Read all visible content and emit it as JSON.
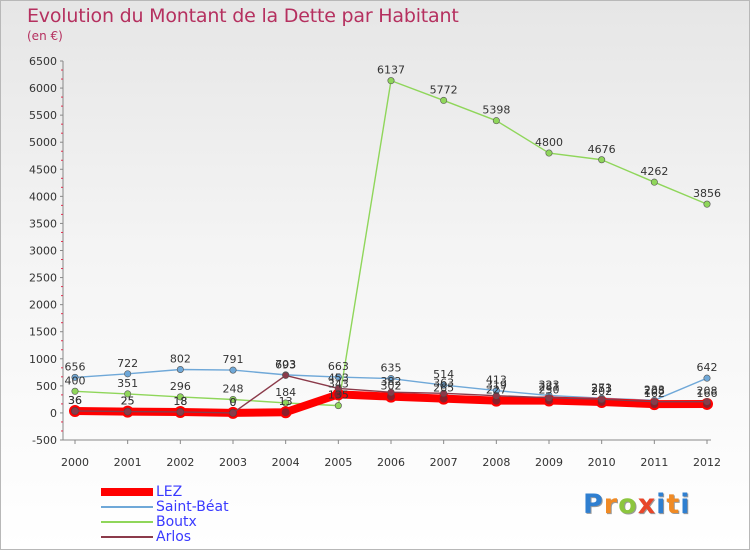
{
  "title": "Evolution du Montant de la Dette par Habitant",
  "unit": "(en €)",
  "logo": {
    "letters": [
      "P",
      "r",
      "o",
      "x",
      "i",
      "t",
      "i"
    ],
    "colors": [
      "#2f7fd0",
      "#f08a24",
      "#8cc63f",
      "#e8462a",
      "#2f7fd0",
      "#f08a24",
      "#2f7fd0"
    ]
  },
  "chart_data": {
    "type": "line",
    "x": [
      "2000",
      "2001",
      "2002",
      "2003",
      "2004",
      "2005",
      "2006",
      "2007",
      "2008",
      "2009",
      "2010",
      "2011",
      "2012"
    ],
    "ylim": [
      -500,
      6500
    ],
    "yticks": [
      -500,
      0,
      500,
      1000,
      1500,
      2000,
      2500,
      3000,
      3500,
      4000,
      4500,
      5000,
      5500,
      6000,
      6500
    ],
    "grid": false,
    "legend_position": "bottom-left",
    "series": [
      {
        "name": "LEZ",
        "color": "#ff0000",
        "values": [
          36,
          25,
          18,
          0,
          13,
          343,
          302,
          265,
          227,
          230,
          202,
          162,
          166
        ],
        "labels": [
          "36",
          "25",
          "18",
          "0",
          "13",
          "343",
          "302",
          "265",
          "227",
          "230",
          "202",
          "162",
          "166"
        ]
      },
      {
        "name": "Saint-Béat",
        "color": "#6fa8d8",
        "values": [
          656,
          722,
          802,
          791,
          703,
          663,
          635,
          514,
          413,
          323,
          271,
          233,
          642
        ],
        "labels": [
          "656",
          "722",
          "802",
          "791",
          "703",
          "663",
          "635",
          "514",
          "413",
          "323",
          "271",
          "233",
          "642"
        ]
      },
      {
        "name": "Boutx",
        "color": "#8fd65a",
        "values": [
          400,
          351,
          296,
          248,
          184,
          135,
          6137,
          5772,
          5398,
          4800,
          4676,
          4262,
          3856
        ],
        "labels": [
          "400",
          "351",
          "296",
          "248",
          "184",
          "135",
          "6137",
          "5772",
          "5398",
          "4800",
          "4676",
          "4262",
          "3856"
        ]
      },
      {
        "name": "Arlos",
        "color": "#8b3a4a",
        "values": [
          36,
          25,
          18,
          0,
          693,
          453,
          382,
          363,
          319,
          281,
          253,
          208,
          208
        ],
        "labels": [
          "36",
          "25",
          "18",
          "0",
          "693",
          "453",
          "382",
          "363",
          "319",
          "281",
          "253",
          "208",
          "208"
        ]
      }
    ]
  }
}
